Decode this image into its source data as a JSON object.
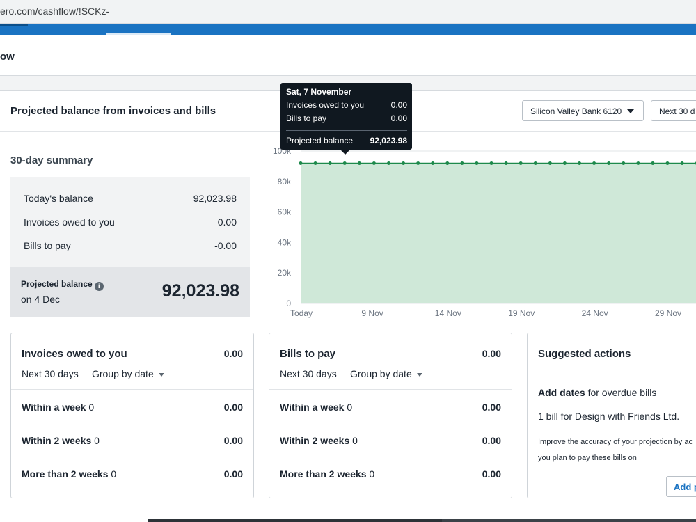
{
  "browser": {
    "url": "ero.com/cashflow/!SCKz-"
  },
  "page": {
    "title": "ow"
  },
  "card": {
    "title": "Projected balance from invoices and bills",
    "bank_account": "Silicon Valley Bank 6120",
    "range": "Next 30 d"
  },
  "summary": {
    "title": "30-day summary",
    "rows": [
      {
        "label": "Today's balance",
        "value": "92,023.98"
      },
      {
        "label": "Invoices owed to you",
        "value": "0.00"
      },
      {
        "label": "Bills to pay",
        "value": "-0.00"
      }
    ],
    "projected_label": "Projected balance",
    "projected_date": "on 4 Dec",
    "projected_value": "92,023.98"
  },
  "tooltip": {
    "date": "Sat, 7 November",
    "rows": [
      {
        "label": "Invoices owed to you",
        "value": "0.00"
      },
      {
        "label": "Bills to pay",
        "value": "0.00"
      }
    ],
    "total_label": "Projected balance",
    "total_value": "92,023.98"
  },
  "chart_data": {
    "type": "area",
    "title": "",
    "xlabel": "",
    "ylabel": "",
    "ylim": [
      0,
      100000
    ],
    "y_ticks": [
      0,
      20000,
      40000,
      60000,
      80000,
      100000
    ],
    "y_tick_labels": [
      "0",
      "20k",
      "40k",
      "60k",
      "80k",
      "100k"
    ],
    "x_tick_labels": [
      "Today",
      "9 Nov",
      "14 Nov",
      "19 Nov",
      "24 Nov",
      "29 Nov"
    ],
    "x_tick_positions": [
      0,
      5,
      10,
      15,
      20,
      25
    ],
    "x": [
      0,
      1,
      2,
      3,
      4,
      5,
      6,
      7,
      8,
      9,
      10,
      11,
      12,
      13,
      14,
      15,
      16,
      17,
      18,
      19,
      20,
      21,
      22,
      23,
      24,
      25,
      26,
      27
    ],
    "values": [
      92023.98,
      92023.98,
      92023.98,
      92023.98,
      92023.98,
      92023.98,
      92023.98,
      92023.98,
      92023.98,
      92023.98,
      92023.98,
      92023.98,
      92023.98,
      92023.98,
      92023.98,
      92023.98,
      92023.98,
      92023.98,
      92023.98,
      92023.98,
      92023.98,
      92023.98,
      92023.98,
      92023.98,
      92023.98,
      92023.98,
      92023.98,
      92023.98
    ],
    "grid": true,
    "colors": {
      "fill": "#cfe8d8",
      "line": "#1e8a4c",
      "grid": "#e1e4e7"
    }
  },
  "invoices": {
    "title": "Invoices owed to you",
    "total": "0.00",
    "period": "Next 30 days",
    "group_by": "Group by date",
    "buckets": [
      {
        "name": "Within a week",
        "count": "0",
        "value": "0.00"
      },
      {
        "name": "Within 2 weeks",
        "count": "0",
        "value": "0.00"
      },
      {
        "name": "More than 2 weeks",
        "count": "0",
        "value": "0.00"
      }
    ]
  },
  "bills": {
    "title": "Bills to pay",
    "total": "0.00",
    "period": "Next 30 days",
    "group_by": "Group by date",
    "buckets": [
      {
        "name": "Within a week",
        "count": "0",
        "value": "0.00"
      },
      {
        "name": "Within 2 weeks",
        "count": "0",
        "value": "0.00"
      },
      {
        "name": "More than 2 weeks",
        "count": "0",
        "value": "0.00"
      }
    ]
  },
  "suggested": {
    "title": "Suggested actions",
    "action_bold": "Add dates",
    "action_rest": " for overdue bills",
    "detail": "1 bill for Design with Friends Ltd.",
    "hint_line1": "Improve the accuracy of your projection by ac",
    "hint_line2": "you plan to pay these bills on",
    "button": "Add p"
  },
  "colors": {
    "accent": "#1a73c2"
  }
}
